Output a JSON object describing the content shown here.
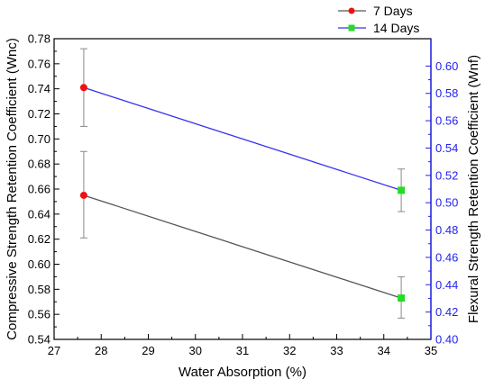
{
  "chart_data": {
    "type": "line",
    "title": "",
    "xlabel": "Water Absorption (%)",
    "ylabel_left": "Compressive Strength Retention Coefficient (Wnc)",
    "ylabel_right": "Flexural Strength Retention Coefficient (Wnf)",
    "xlim": [
      27,
      35
    ],
    "ylim_left": [
      0.54,
      0.78
    ],
    "ylim_right": [
      0.4,
      0.62
    ],
    "x_ticks": [
      "27",
      "28",
      "29",
      "30",
      "31",
      "32",
      "33",
      "34",
      "35"
    ],
    "y_left_ticks": [
      "0.54",
      "0.56",
      "0.58",
      "0.60",
      "0.62",
      "0.64",
      "0.66",
      "0.68",
      "0.70",
      "0.72",
      "0.74",
      "0.76",
      "0.78"
    ],
    "y_right_ticks": [
      "0.40",
      "0.42",
      "0.44",
      "0.46",
      "0.48",
      "0.50",
      "0.52",
      "0.54",
      "0.56",
      "0.58",
      "0.60"
    ],
    "legend_position": "top-right",
    "series": [
      {
        "name": "7 Days",
        "color": "#555555",
        "axis": "left",
        "x": [
          27.63,
          34.37
        ],
        "y": [
          0.655,
          0.573
        ],
        "err_low": [
          0.621,
          0.557
        ],
        "err_high": [
          0.69,
          0.59
        ]
      },
      {
        "name": "14 Days",
        "color": "#3333ee",
        "axis": "left",
        "x": [
          27.63,
          34.37
        ],
        "y": [
          0.741,
          0.659
        ],
        "err_low": [
          0.71,
          0.642
        ],
        "err_high": [
          0.772,
          0.676
        ]
      }
    ],
    "marker_colors": [
      "#ee1111",
      "#22dd22"
    ]
  }
}
